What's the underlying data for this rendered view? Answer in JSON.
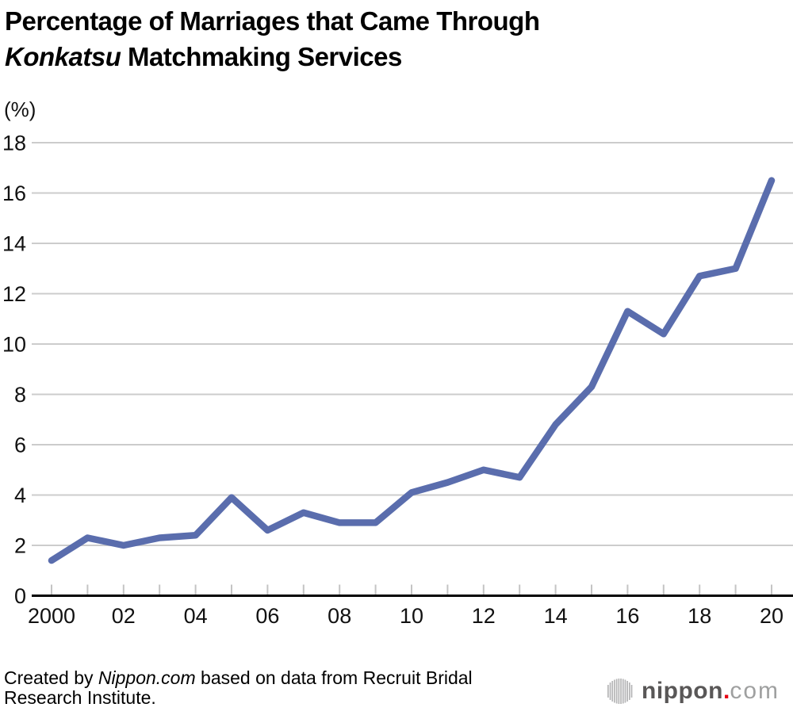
{
  "header": {
    "title_line1": "Percentage of Marriages that Came Through",
    "title_line2_italic": "Konkatsu",
    "title_line2_rest": " Matchmaking Services"
  },
  "chart_data": {
    "type": "line",
    "title": "Percentage of Marriages that Came Through Konkatsu Matchmaking Services",
    "unit_label": "(%)",
    "x": [
      2000,
      2001,
      2002,
      2003,
      2004,
      2005,
      2006,
      2007,
      2008,
      2009,
      2010,
      2011,
      2012,
      2013,
      2014,
      2015,
      2016,
      2017,
      2018,
      2019,
      2020
    ],
    "values": [
      1.4,
      2.3,
      2.0,
      2.3,
      2.4,
      3.9,
      2.6,
      3.3,
      2.9,
      2.9,
      4.1,
      4.5,
      5.0,
      4.7,
      6.8,
      8.3,
      11.3,
      10.4,
      12.7,
      13.0,
      16.5
    ],
    "x_tick_labels": [
      "2000",
      "",
      "02",
      "",
      "04",
      "",
      "06",
      "",
      "08",
      "",
      "10",
      "",
      "12",
      "",
      "14",
      "",
      "16",
      "",
      "18",
      "",
      "20"
    ],
    "y_ticks": [
      0,
      2,
      4,
      6,
      8,
      10,
      12,
      14,
      16,
      18
    ],
    "ylim": [
      0,
      18
    ],
    "xlabel": "",
    "ylabel": "(%)",
    "grid": true,
    "legend": "none",
    "colors": {
      "line": "#5a6dad",
      "grid": "#cccccc",
      "tick": "#c4c4c4",
      "axis": "#000000",
      "label": "#111111"
    }
  },
  "footer": {
    "credit_prefix": "Created by ",
    "credit_italic": "Nippon.com",
    "credit_suffix": " based on data from Recruit Bridal Research Institute.",
    "logo": {
      "icon": "soundwave-circle-icon",
      "text_bold": "nippon",
      "dot": ".",
      "text_light": "com",
      "bold_color": "#595757",
      "dot_color": "#e60012",
      "light_color": "#9fa0a0",
      "bars_color": "#b5b5b6"
    }
  }
}
